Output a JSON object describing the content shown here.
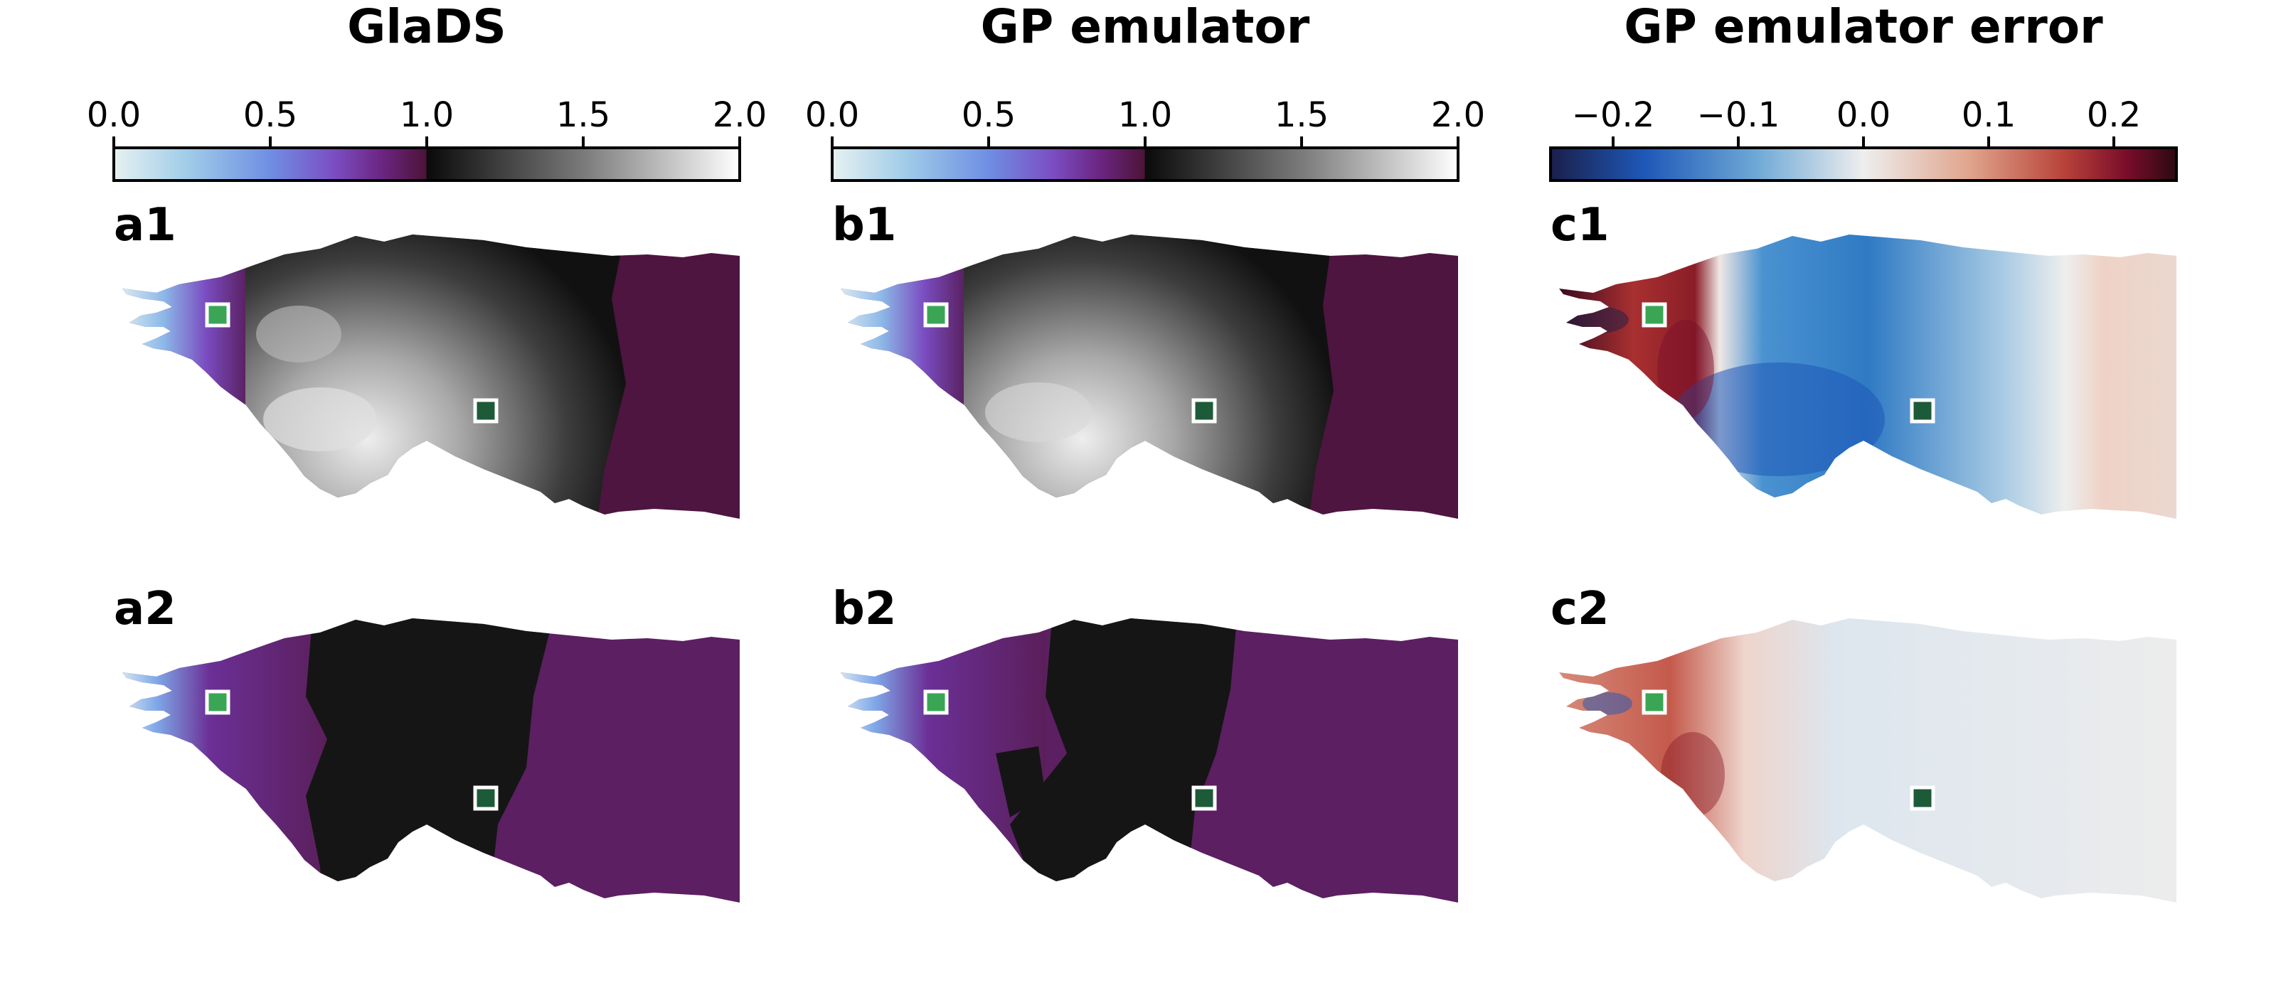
{
  "figure": {
    "columns": [
      {
        "id": "a",
        "title": "GlaDS",
        "colorbar": {
          "colormap": "dense-purple-to-gray",
          "range": [
            0.0,
            2.0
          ],
          "ticks": [
            0.0,
            0.5,
            1.0,
            1.5,
            2.0
          ],
          "tick_labels": [
            "0.0",
            "0.5",
            "1.0",
            "1.5",
            "2.0"
          ]
        },
        "panels": [
          {
            "label": "a1",
            "row": 1
          },
          {
            "label": "a2",
            "row": 2
          }
        ]
      },
      {
        "id": "b",
        "title": "GP emulator",
        "colorbar": {
          "colormap": "dense-purple-to-gray",
          "range": [
            0.0,
            2.0
          ],
          "ticks": [
            0.0,
            0.5,
            1.0,
            1.5,
            2.0
          ],
          "tick_labels": [
            "0.0",
            "0.5",
            "1.0",
            "1.5",
            "2.0"
          ]
        },
        "panels": [
          {
            "label": "b1",
            "row": 1
          },
          {
            "label": "b2",
            "row": 2
          }
        ]
      },
      {
        "id": "c",
        "title": "GP emulator error",
        "colorbar": {
          "colormap": "balance-diverging",
          "range": [
            -0.25,
            0.25
          ],
          "ticks": [
            -0.2,
            -0.1,
            0.0,
            0.1,
            0.2
          ],
          "tick_labels": [
            "−0.2",
            "−0.1",
            "0.0",
            "0.1",
            "0.2"
          ]
        },
        "panels": [
          {
            "label": "c1",
            "row": 1
          },
          {
            "label": "c2",
            "row": 2
          }
        ]
      }
    ],
    "markers": [
      {
        "name": "upstream-site",
        "color": "#3aa655"
      },
      {
        "name": "downstream-site",
        "color": "#1d5a38"
      }
    ]
  },
  "colors": {
    "dense": [
      "#e6f1f1",
      "#9fcbe8",
      "#6f8ee3",
      "#7b4fc4",
      "#6b2480",
      "#4c1438",
      "#0a0a0a",
      "#7a7a7a",
      "#ffffff"
    ],
    "balance": [
      "#1a1f4a",
      "#1e58b8",
      "#6fa9d6",
      "#eeeeee",
      "#e0a48c",
      "#b8433a",
      "#7a0d2a",
      "#2b0a12"
    ]
  }
}
